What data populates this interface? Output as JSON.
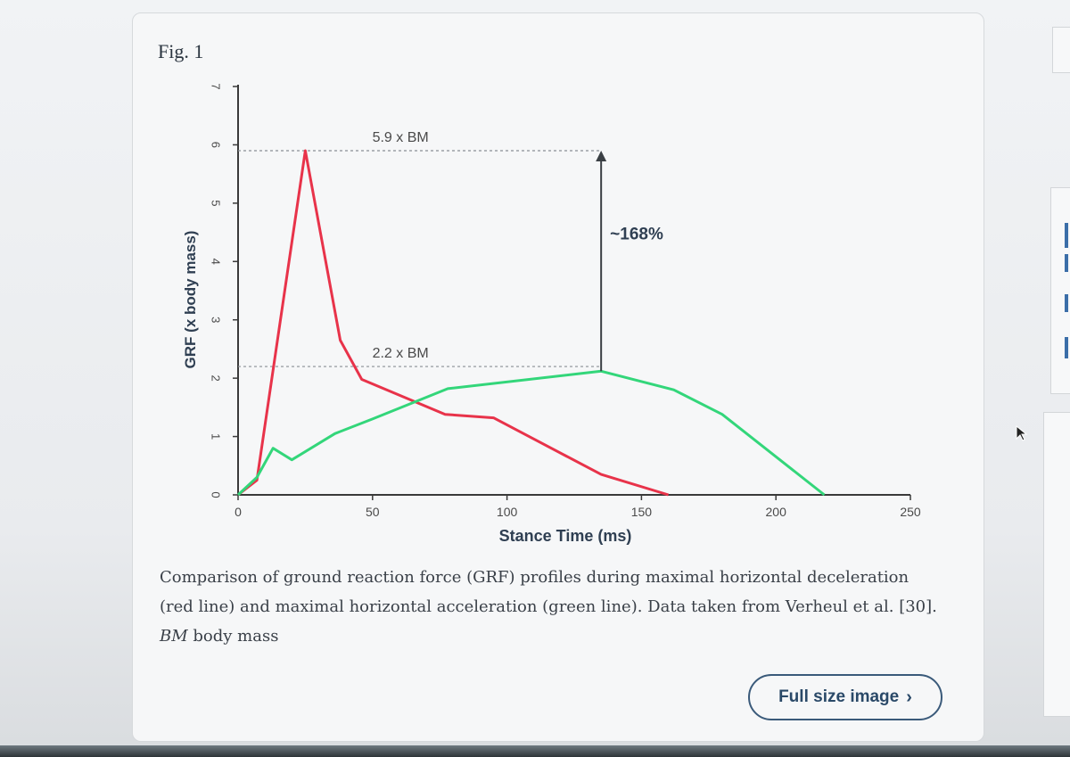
{
  "figure": {
    "label": "Fig. 1",
    "caption_main": "Comparison of ground reaction force (GRF) profiles during maximal horizontal deceleration (red line) and maximal horizontal acceleration (green line). Data taken from Verheul et al. [30].",
    "caption_abbrev": "BM",
    "caption_abbrev_def": "body mass",
    "full_size_label": "Full size image",
    "full_size_icon": "chevron-right-icon"
  },
  "chart_data": {
    "type": "line",
    "xlabel": "Stance Time (ms)",
    "ylabel": "GRF (x body mass)",
    "xlim": [
      0,
      250
    ],
    "ylim": [
      0,
      7
    ],
    "x_ticks": [
      0,
      50,
      100,
      150,
      200,
      250
    ],
    "y_ticks": [
      0,
      1,
      2,
      3,
      4,
      5,
      6,
      7
    ],
    "grid": false,
    "series": [
      {
        "color": "#e8334a",
        "points": [
          [
            0,
            0
          ],
          [
            7,
            0.25
          ],
          [
            25,
            5.9
          ],
          [
            38,
            2.65
          ],
          [
            46,
            1.98
          ],
          [
            77,
            1.38
          ],
          [
            95,
            1.32
          ],
          [
            135,
            0.35
          ],
          [
            160,
            0
          ]
        ]
      },
      {
        "color": "#33d67a",
        "points": [
          [
            0,
            0
          ],
          [
            7,
            0.3
          ],
          [
            13,
            0.8
          ],
          [
            20,
            0.6
          ],
          [
            36,
            1.05
          ],
          [
            50,
            1.3
          ],
          [
            78,
            1.82
          ],
          [
            135,
            2.12
          ],
          [
            162,
            1.8
          ],
          [
            180,
            1.38
          ],
          [
            218,
            0
          ]
        ]
      }
    ],
    "reference_lines": [
      {
        "y": 5.9,
        "x_end": 135,
        "label": "5.9 x BM"
      },
      {
        "y": 2.2,
        "x_end": 135,
        "label": "2.2 x BM"
      }
    ],
    "annotation": {
      "x": 135,
      "y_from": 2.12,
      "y_to": 5.9,
      "label": "~168%"
    }
  }
}
